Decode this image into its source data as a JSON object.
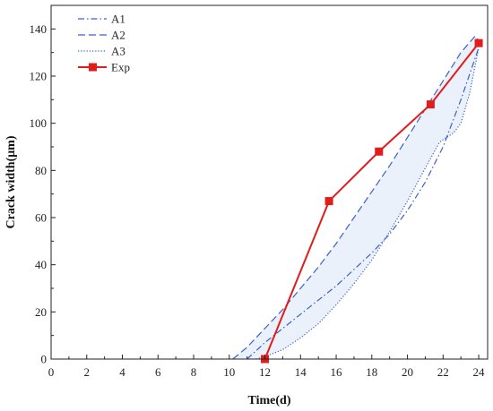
{
  "chart_data": {
    "type": "line",
    "xlabel": "Time(d)",
    "ylabel": "Crack width(μm)",
    "xlim": [
      0,
      24.5
    ],
    "ylim": [
      0,
      150
    ],
    "xticks": [
      0,
      2,
      4,
      6,
      8,
      10,
      12,
      14,
      16,
      18,
      20,
      22,
      24
    ],
    "yticks": [
      0,
      20,
      40,
      60,
      80,
      100,
      120,
      140
    ],
    "grid": false,
    "legend_position": "top-left",
    "band_between": [
      "A2",
      "A3"
    ],
    "band_color": "#eaf1fb",
    "series": [
      {
        "name": "A1",
        "style": "dash-dot",
        "color": "#3a5fcd",
        "x": [
          11.0,
          12.0,
          13.0,
          14.0,
          15.0,
          16.0,
          17.0,
          18.0,
          19.0,
          20.0,
          21.0,
          22.0,
          23.0,
          24.0
        ],
        "y": [
          0,
          7,
          13,
          19,
          25,
          31,
          38,
          45,
          53,
          63,
          75,
          90,
          110,
          132
        ]
      },
      {
        "name": "A2",
        "style": "dashed",
        "color": "#3a5fcd",
        "x": [
          10.2,
          11.0,
          12.0,
          13.0,
          14.0,
          15.0,
          16.0,
          17.0,
          18.0,
          19.0,
          20.0,
          21.0,
          22.0,
          23.0,
          23.8,
          24.0
        ],
        "y": [
          0,
          5,
          13,
          21,
          30,
          39,
          49,
          60,
          71,
          82,
          94,
          106,
          118,
          130,
          137,
          135
        ]
      },
      {
        "name": "A3",
        "style": "dotted",
        "color": "#3a5fcd",
        "x": [
          11.5,
          12.0,
          13.0,
          14.0,
          15.0,
          16.0,
          17.0,
          18.0,
          19.0,
          20.0,
          21.0,
          21.8,
          22.2,
          22.6,
          23.0,
          23.5,
          24.0
        ],
        "y": [
          0,
          1,
          4,
          9,
          15,
          23,
          32,
          42,
          54,
          67,
          81,
          92,
          94,
          96,
          100,
          113,
          132
        ]
      },
      {
        "name": "Exp",
        "style": "solid-square",
        "color": "#e21b1b",
        "x": [
          12.0,
          15.6,
          18.4,
          21.3,
          24.0
        ],
        "y": [
          0,
          67,
          88,
          108,
          134
        ]
      }
    ]
  }
}
